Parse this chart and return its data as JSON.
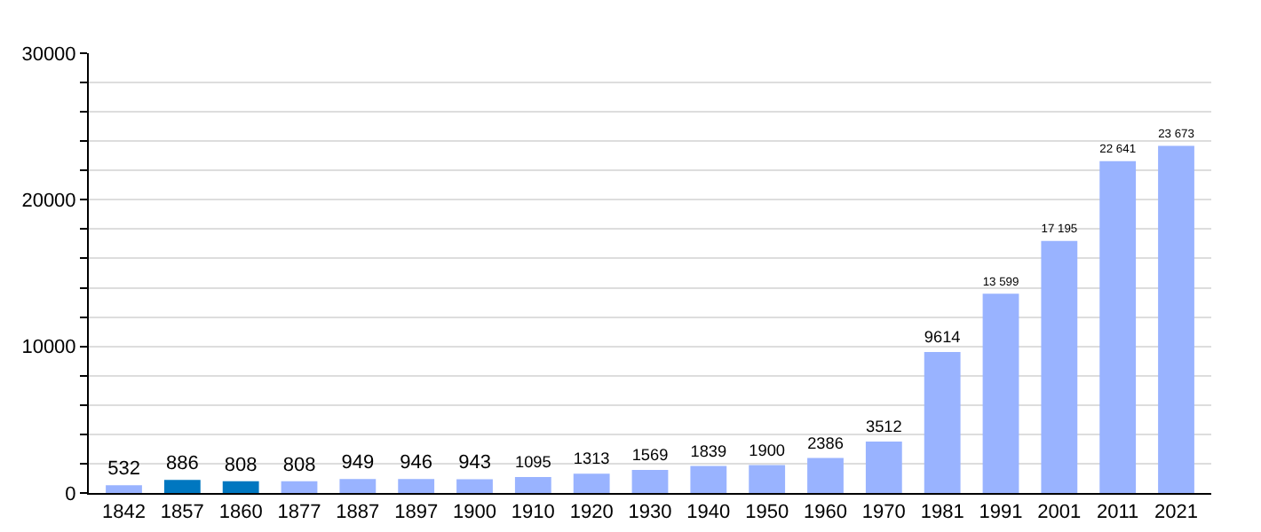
{
  "chart_data": {
    "type": "bar",
    "categories": [
      "1842",
      "1857",
      "1860",
      "1877",
      "1887",
      "1897",
      "1900",
      "1910",
      "1920",
      "1930",
      "1940",
      "1950",
      "1960",
      "1970",
      "1981",
      "1991",
      "2001",
      "2011",
      "2021"
    ],
    "values": [
      532,
      886,
      808,
      808,
      949,
      946,
      943,
      1095,
      1313,
      1569,
      1839,
      1900,
      2386,
      3512,
      9614,
      13599,
      17195,
      22641,
      23673
    ],
    "value_labels": [
      "532",
      "886",
      "808",
      "808",
      "949",
      "946",
      "943",
      "1095",
      "1313",
      "1569",
      "1839",
      "1900",
      "2386",
      "3512",
      "9614",
      "13 599",
      "17 195",
      "22 641",
      "23 673"
    ],
    "colors": [
      "#99b3ff",
      "#0077c0",
      "#0077c0",
      "#99b3ff",
      "#99b3ff",
      "#99b3ff",
      "#99b3ff",
      "#99b3ff",
      "#99b3ff",
      "#99b3ff",
      "#99b3ff",
      "#99b3ff",
      "#99b3ff",
      "#99b3ff",
      "#99b3ff",
      "#99b3ff",
      "#99b3ff",
      "#99b3ff",
      "#99b3ff"
    ],
    "ylim": [
      0,
      30000
    ],
    "yticks": [
      0,
      {
        "value": 2000,
        "label": null
      },
      {
        "value": 4000,
        "label": null
      },
      {
        "value": 6000,
        "label": null
      },
      {
        "value": 8000,
        "label": null
      },
      10000,
      {
        "value": 12000,
        "label": null
      },
      {
        "value": 14000,
        "label": null
      },
      {
        "value": 16000,
        "label": null
      },
      {
        "value": 18000,
        "label": null
      },
      20000,
      {
        "value": 22000,
        "label": null
      },
      {
        "value": 24000,
        "label": null
      },
      {
        "value": 26000,
        "label": null
      },
      {
        "value": 28000,
        "label": null
      },
      30000
    ],
    "grid": "y"
  }
}
